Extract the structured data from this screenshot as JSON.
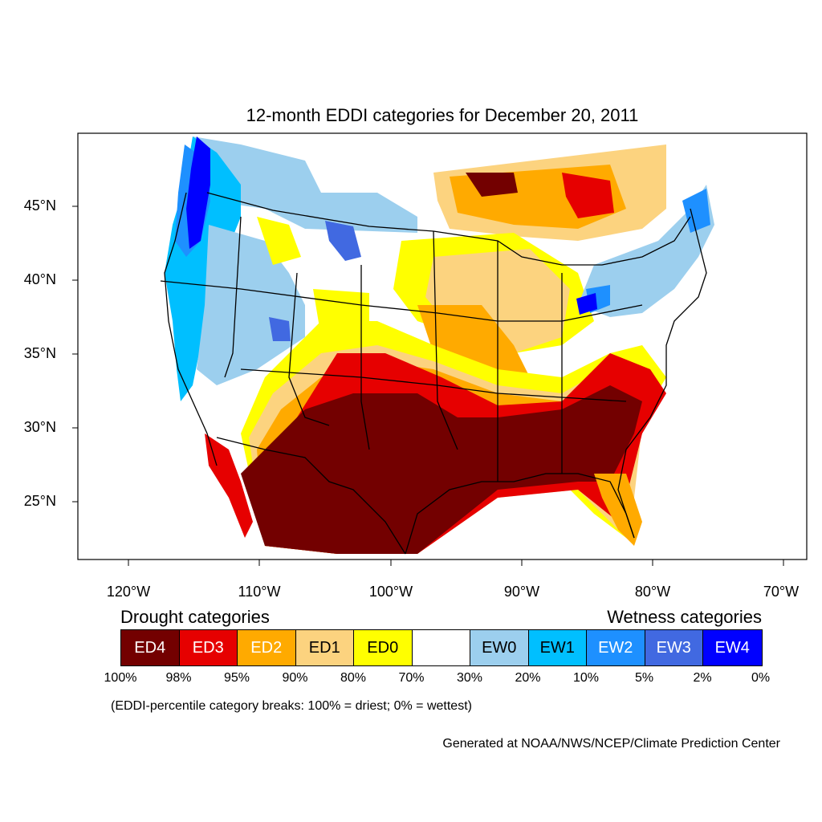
{
  "title": "12-month EDDI categories for December 20, 2011",
  "latitude_labels": [
    "45°N",
    "40°N",
    "35°N",
    "30°N",
    "25°N"
  ],
  "longitude_labels": [
    "120°W",
    "110°W",
    "100°W",
    "90°W",
    "80°W",
    "70°W"
  ],
  "drought_heading": "Drought categories",
  "wetness_heading": "Wetness categories",
  "legend": [
    {
      "label": "ED4",
      "color": "#730000",
      "text_color": "#ffffff"
    },
    {
      "label": "ED3",
      "color": "#e60000",
      "text_color": "#ffffff"
    },
    {
      "label": "ED2",
      "color": "#ffaa00",
      "text_color": "#ffffff"
    },
    {
      "label": "ED1",
      "color": "#fcd37f",
      "text_color": "#000000"
    },
    {
      "label": "ED0",
      "color": "#ffff00",
      "text_color": "#000000"
    },
    {
      "label": "",
      "color": "#ffffff",
      "text_color": "#000000"
    },
    {
      "label": "EW0",
      "color": "#9ccfee",
      "text_color": "#000000"
    },
    {
      "label": "EW1",
      "color": "#00bfff",
      "text_color": "#000000"
    },
    {
      "label": "EW2",
      "color": "#1e90ff",
      "text_color": "#ffffff"
    },
    {
      "label": "EW3",
      "color": "#4169e1",
      "text_color": "#ffffff"
    },
    {
      "label": "EW4",
      "color": "#0000ff",
      "text_color": "#ffffff"
    }
  ],
  "percent_breaks": [
    "100%",
    "98%",
    "95%",
    "90%",
    "80%",
    "70%",
    "30%",
    "20%",
    "10%",
    "5%",
    "2%",
    "0%"
  ],
  "note": "(EDDI-percentile category breaks: 100% = driest; 0% = wettest)",
  "credit": "Generated at NOAA/NWS/NCEP/Climate Prediction Center"
}
